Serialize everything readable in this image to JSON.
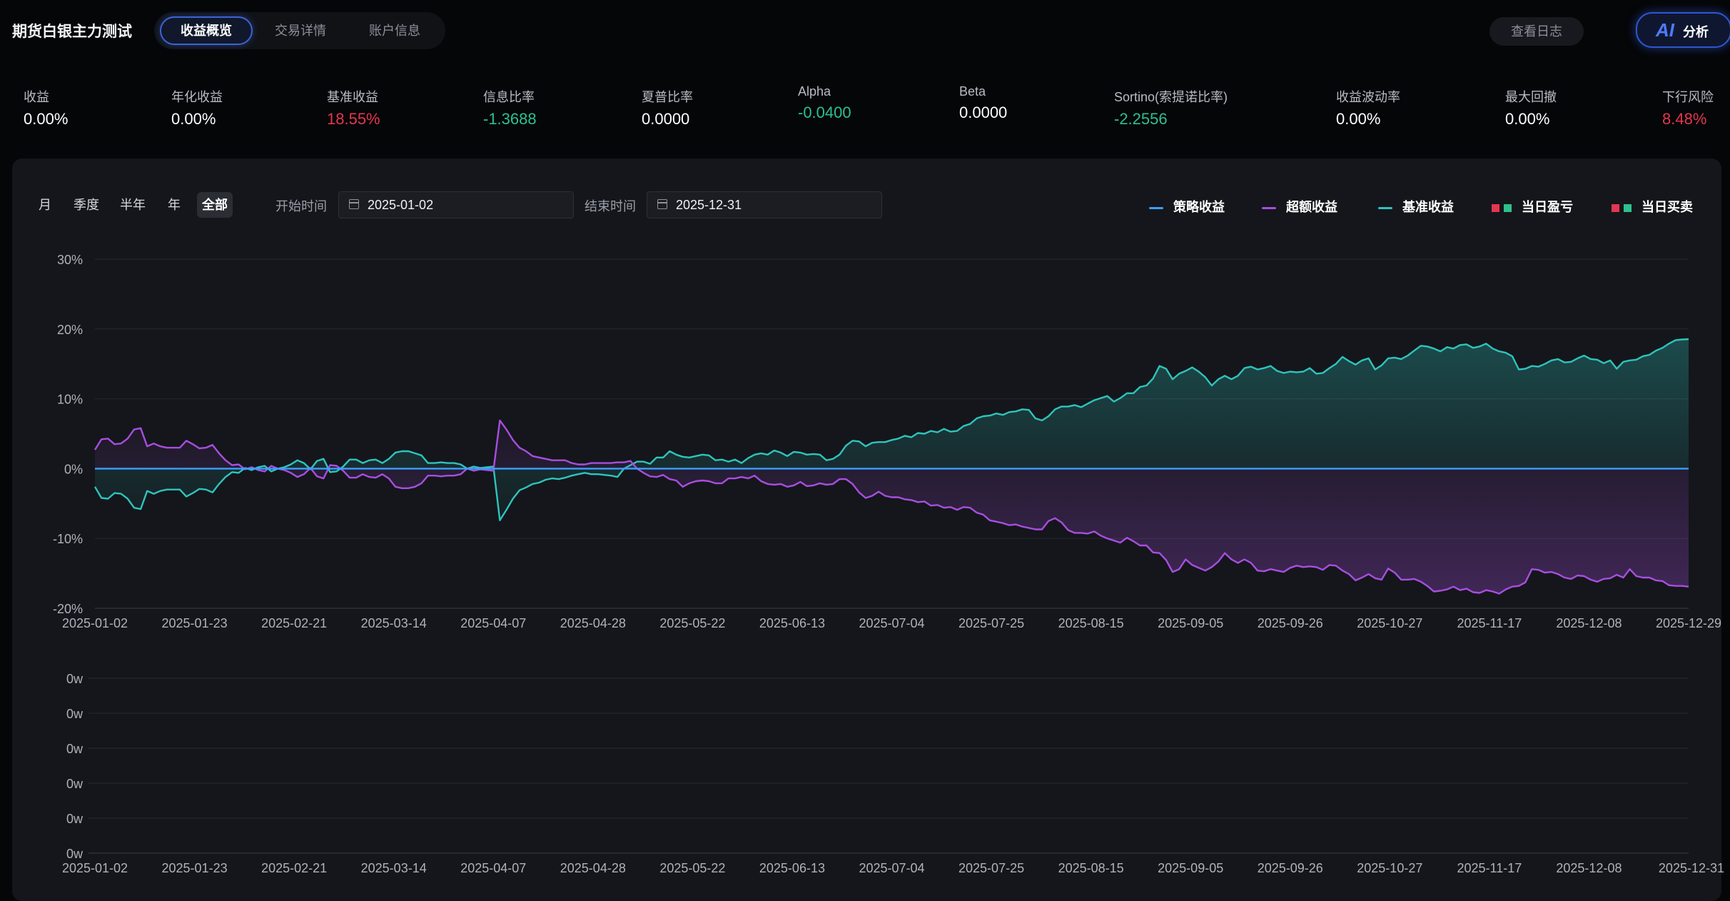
{
  "app": {
    "title": "期货白银主力测试",
    "tabs": [
      {
        "label": "收益概览",
        "active": true
      },
      {
        "label": "交易详情",
        "active": false
      },
      {
        "label": "账户信息",
        "active": false
      }
    ],
    "log_button": "查看日志",
    "ai_button": {
      "mark": "AI",
      "label": "分析"
    }
  },
  "metrics": [
    {
      "label": "收益",
      "value": "0.00%",
      "color": "#ffffff"
    },
    {
      "label": "年化收益",
      "value": "0.00%",
      "color": "#ffffff"
    },
    {
      "label": "基准收益",
      "value": "18.55%",
      "color": "#e5364f"
    },
    {
      "label": "信息比率",
      "value": "-1.3688",
      "color": "#2ec08e"
    },
    {
      "label": "夏普比率",
      "value": "0.0000",
      "color": "#ffffff"
    },
    {
      "label": "Alpha",
      "value": "-0.0400",
      "color": "#2ec08e"
    },
    {
      "label": "Beta",
      "value": "0.0000",
      "color": "#ffffff"
    },
    {
      "label": "Sortino(索提诺比率)",
      "value": "-2.2556",
      "color": "#2ec08e"
    },
    {
      "label": "收益波动率",
      "value": "0.00%",
      "color": "#ffffff"
    },
    {
      "label": "最大回撤",
      "value": "0.00%",
      "color": "#ffffff"
    },
    {
      "label": "下行风险",
      "value": "8.48%",
      "color": "#e5364f"
    }
  ],
  "controls": {
    "periods": [
      {
        "label": "月",
        "active": false
      },
      {
        "label": "季度",
        "active": false
      },
      {
        "label": "半年",
        "active": false
      },
      {
        "label": "年",
        "active": false
      },
      {
        "label": "全部",
        "active": true
      }
    ],
    "start_label": "开始时间",
    "start_value": "2025-01-02",
    "end_label": "结束时间",
    "end_value": "2025-12-31"
  },
  "legend": [
    {
      "label": "策略收益",
      "kind": "line",
      "color": "#3aa0ff"
    },
    {
      "label": "超额收益",
      "kind": "line",
      "color": "#a84ee0"
    },
    {
      "label": "基准收益",
      "kind": "line",
      "color": "#2ec4bc"
    },
    {
      "label": "当日盈亏",
      "kind": "squares",
      "colors": [
        "#e5364f",
        "#2ec08e"
      ]
    },
    {
      "label": "当日买卖",
      "kind": "squares",
      "colors": [
        "#e5364f",
        "#2ec08e"
      ]
    }
  ],
  "chart_data": [
    {
      "type": "line",
      "y_unit": "%",
      "ylim": [
        -20,
        30
      ],
      "y_ticks": [
        "30%",
        "20%",
        "10%",
        "0%",
        "-10%",
        "-20%"
      ],
      "x_tick_labels": [
        "2025-01-02",
        "2025-01-23",
        "2025-02-21",
        "2025-03-14",
        "2025-04-07",
        "2025-04-28",
        "2025-05-22",
        "2025-06-13",
        "2025-07-04",
        "2025-07-25",
        "2025-08-15",
        "2025-09-05",
        "2025-09-26",
        "2025-10-27",
        "2025-11-17",
        "2025-12-08",
        "2025-12-29"
      ],
      "grid": true,
      "legend_position": "top-right",
      "series": [
        {
          "name": "策略收益",
          "color": "#3aa0ff",
          "values": [
            0,
            0,
            0,
            0,
            0,
            0,
            0,
            0,
            0,
            0,
            0,
            0,
            0,
            0,
            0,
            0,
            0,
            0,
            0,
            0,
            0,
            0,
            0,
            0,
            0,
            0,
            0,
            0,
            0,
            0,
            0,
            0,
            0,
            0,
            0,
            0,
            0,
            0,
            0,
            0,
            0,
            0,
            0,
            0,
            0,
            0,
            0,
            0,
            0,
            0,
            0,
            0,
            0,
            0,
            0,
            0,
            0,
            0,
            0,
            0,
            0,
            0,
            0,
            0,
            0,
            0,
            0,
            0,
            0,
            0,
            0,
            0,
            0,
            0,
            0,
            0,
            0,
            0,
            0,
            0,
            0,
            0,
            0,
            0,
            0,
            0,
            0,
            0,
            0,
            0,
            0,
            0,
            0,
            0,
            0,
            0,
            0,
            0,
            0,
            0,
            0,
            0,
            0,
            0,
            0,
            0,
            0,
            0,
            0,
            0,
            0,
            0,
            0,
            0,
            0,
            0,
            0,
            0,
            0,
            0,
            0,
            0,
            0,
            0,
            0,
            0,
            0,
            0,
            0,
            0,
            0,
            0,
            0,
            0,
            0,
            0,
            0,
            0,
            0,
            0,
            0,
            0,
            0,
            0,
            0,
            0,
            0,
            0,
            0,
            0,
            0,
            0,
            0,
            0,
            0,
            0,
            0,
            0,
            0,
            0,
            0,
            0,
            0,
            0,
            0,
            0,
            0,
            0,
            0,
            0,
            0,
            0,
            0,
            0,
            0,
            0,
            0,
            0,
            0,
            0,
            0,
            0,
            0,
            0,
            0,
            0,
            0,
            0,
            0,
            0,
            0,
            0,
            0,
            0,
            0,
            0,
            0,
            0,
            0,
            0,
            0,
            0,
            0,
            0,
            0,
            0,
            0,
            0,
            0,
            0,
            0,
            0,
            0,
            0,
            0,
            0,
            0,
            0,
            0,
            0,
            0,
            0,
            0,
            0,
            0,
            0,
            0,
            0,
            0,
            0,
            0,
            0,
            0,
            0,
            0,
            0,
            0,
            0,
            0,
            0,
            0,
            0,
            0,
            0
          ]
        },
        {
          "name": "超额收益",
          "color": "#a84ee0",
          "values": [
            2.7,
            4.2,
            4.3,
            3.5,
            3.6,
            4.3,
            5.6,
            5.8,
            3.2,
            3.6,
            3.2,
            3.0,
            3.0,
            3.0,
            4.0,
            3.5,
            2.9,
            3.0,
            3.4,
            2.2,
            1.2,
            0.5,
            0.6,
            -0.1,
            0.2,
            -0.2,
            -0.4,
            0.4,
            0.0,
            -0.2,
            -0.6,
            -1.2,
            -0.8,
            0.1,
            -1.1,
            -1.4,
            0.5,
            0.4,
            -0.3,
            -1.3,
            -1.3,
            -0.8,
            -1.2,
            -1.3,
            -0.8,
            -1.4,
            -2.6,
            -2.8,
            -2.8,
            -2.6,
            -2.1,
            -1.0,
            -1.0,
            -1.1,
            -1.0,
            -1.0,
            -0.8,
            0.0,
            -0.3,
            -0.1,
            -0.2,
            -0.3,
            6.9,
            5.6,
            4.1,
            3.0,
            2.5,
            1.8,
            1.6,
            1.4,
            1.2,
            1.2,
            1.2,
            0.8,
            0.6,
            0.6,
            0.8,
            0.8,
            0.8,
            0.8,
            0.9,
            0.9,
            1.1,
            0.0,
            -0.6,
            -1.1,
            -1.2,
            -0.9,
            -1.5,
            -1.7,
            -2.6,
            -2.1,
            -1.8,
            -1.7,
            -1.8,
            -2.1,
            -2.1,
            -1.4,
            -1.4,
            -1.2,
            -1.4,
            -1.0,
            -1.8,
            -2.2,
            -2.3,
            -2.2,
            -2.6,
            -2.4,
            -1.9,
            -2.5,
            -2.4,
            -2.1,
            -2.3,
            -2.2,
            -1.5,
            -1.5,
            -2.2,
            -3.4,
            -4.2,
            -3.9,
            -3.3,
            -3.9,
            -4.1,
            -4.1,
            -4.4,
            -4.5,
            -4.8,
            -4.7,
            -5.3,
            -5.2,
            -5.6,
            -5.5,
            -5.9,
            -5.5,
            -5.6,
            -6.3,
            -6.6,
            -7.4,
            -7.6,
            -7.8,
            -8.1,
            -8.0,
            -8.3,
            -8.5,
            -8.7,
            -8.7,
            -7.5,
            -7.1,
            -7.7,
            -8.8,
            -9.2,
            -9.2,
            -9.3,
            -9.0,
            -9.6,
            -10.0,
            -10.3,
            -10.6,
            -9.9,
            -10.4,
            -11.0,
            -11.0,
            -12.0,
            -12.1,
            -13.1,
            -14.8,
            -14.4,
            -13.0,
            -13.8,
            -14.2,
            -14.6,
            -14.1,
            -13.3,
            -12.1,
            -13.0,
            -13.5,
            -13.0,
            -13.5,
            -14.6,
            -14.7,
            -14.4,
            -14.6,
            -14.8,
            -14.2,
            -13.9,
            -14.1,
            -14.0,
            -14.1,
            -14.5,
            -13.8,
            -13.9,
            -14.6,
            -15.1,
            -16.0,
            -15.6,
            -15.1,
            -15.7,
            -15.9,
            -14.3,
            -14.9,
            -15.9,
            -15.9,
            -15.8,
            -16.2,
            -16.8,
            -17.6,
            -17.5,
            -17.3,
            -16.9,
            -17.4,
            -17.2,
            -17.7,
            -17.8,
            -17.4,
            -17.6,
            -17.9,
            -17.3,
            -16.9,
            -16.8,
            -16.3,
            -14.4,
            -14.5,
            -14.9,
            -14.8,
            -15.1,
            -15.6,
            -15.8,
            -15.3,
            -15.4,
            -15.9,
            -16.2,
            -15.8,
            -15.7,
            -15.2,
            -15.6,
            -14.4,
            -15.4,
            -15.6,
            -15.6,
            -16.0,
            -16.1,
            -16.7,
            -16.8,
            -16.8,
            -16.9
          ]
        },
        {
          "name": "基准收益",
          "color": "#2ec4bc",
          "values": [
            -2.6,
            -4.2,
            -4.3,
            -3.5,
            -3.6,
            -4.3,
            -5.6,
            -5.8,
            -3.2,
            -3.6,
            -3.2,
            -3.0,
            -3.0,
            -3.0,
            -4.0,
            -3.5,
            -2.9,
            -3.0,
            -3.4,
            -2.2,
            -1.2,
            -0.5,
            -0.6,
            0.1,
            -0.2,
            0.2,
            0.4,
            -0.4,
            0.0,
            0.2,
            0.6,
            1.2,
            0.8,
            -0.1,
            1.1,
            1.4,
            -0.5,
            -0.4,
            0.3,
            1.3,
            1.3,
            0.8,
            1.2,
            1.3,
            0.8,
            1.4,
            2.3,
            2.5,
            2.5,
            2.2,
            1.9,
            0.8,
            0.8,
            0.9,
            0.8,
            0.8,
            0.6,
            0.0,
            0.3,
            0.1,
            0.2,
            0.3,
            -7.4,
            -5.9,
            -4.3,
            -3.1,
            -2.7,
            -2.2,
            -2.0,
            -1.6,
            -1.4,
            -1.5,
            -1.3,
            -1.0,
            -0.8,
            -0.6,
            -0.8,
            -0.8,
            -0.9,
            -1.0,
            -1.2,
            0.0,
            0.5,
            1.0,
            1.0,
            0.7,
            1.6,
            1.6,
            2.5,
            2.0,
            1.7,
            1.6,
            1.8,
            2.0,
            1.9,
            1.2,
            1.3,
            1.0,
            1.3,
            0.8,
            1.5,
            2.0,
            2.2,
            2.0,
            2.6,
            2.3,
            1.8,
            2.4,
            2.3,
            2.0,
            2.1,
            2.0,
            1.2,
            1.4,
            2.0,
            3.3,
            4.0,
            3.9,
            3.2,
            3.7,
            3.8,
            3.8,
            4.1,
            4.3,
            4.7,
            4.5,
            5.1,
            5.0,
            5.4,
            5.2,
            5.7,
            5.3,
            5.4,
            6.1,
            6.4,
            7.2,
            7.5,
            7.6,
            7.9,
            7.7,
            8.1,
            8.2,
            8.5,
            8.4,
            7.2,
            6.9,
            7.5,
            8.5,
            8.9,
            8.9,
            9.1,
            8.8,
            9.3,
            9.8,
            10.1,
            10.4,
            9.6,
            10.1,
            10.8,
            10.8,
            11.7,
            11.9,
            12.9,
            14.7,
            14.3,
            12.8,
            13.6,
            14.0,
            14.5,
            13.9,
            13.1,
            11.9,
            12.8,
            13.3,
            12.8,
            13.3,
            14.4,
            14.6,
            14.2,
            14.4,
            14.7,
            14.0,
            13.7,
            13.9,
            13.8,
            13.9,
            14.4,
            13.6,
            13.7,
            14.4,
            15.0,
            16.0,
            15.4,
            14.9,
            15.5,
            15.8,
            14.2,
            14.8,
            15.8,
            15.9,
            15.7,
            16.2,
            16.9,
            17.6,
            17.5,
            17.2,
            16.8,
            17.4,
            17.2,
            17.7,
            17.8,
            17.3,
            17.5,
            17.9,
            17.2,
            16.8,
            16.6,
            16.1,
            14.2,
            14.3,
            14.7,
            14.6,
            15.0,
            15.5,
            15.7,
            15.2,
            15.3,
            15.8,
            16.2,
            15.7,
            15.6,
            15.1,
            15.5,
            14.3,
            15.3,
            15.5,
            15.6,
            16.1,
            16.3,
            16.9,
            17.3,
            17.9,
            18.4,
            18.5,
            18.55
          ]
        }
      ]
    },
    {
      "type": "bar",
      "title": "",
      "y_ticks": [
        "0w",
        "0w",
        "0w",
        "0w",
        "0w",
        "0w"
      ],
      "x_tick_labels": [
        "2025-01-02",
        "2025-01-23",
        "2025-02-21",
        "2025-03-14",
        "2025-04-07",
        "2025-04-28",
        "2025-05-22",
        "2025-06-13",
        "2025-07-04",
        "2025-07-25",
        "2025-08-15",
        "2025-09-05",
        "2025-09-26",
        "2025-10-27",
        "2025-11-17",
        "2025-12-08",
        "2025-12-31"
      ],
      "grid": true,
      "series": []
    }
  ]
}
